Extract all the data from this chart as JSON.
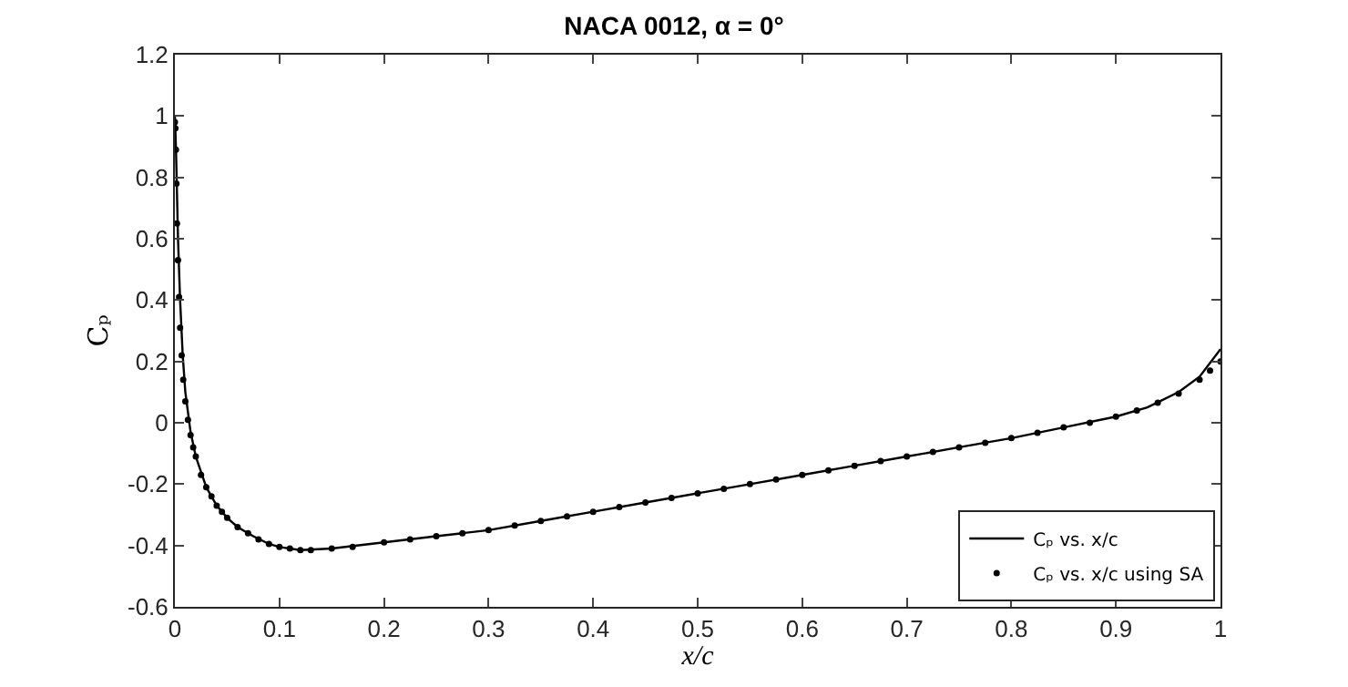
{
  "chart_data": {
    "type": "line",
    "title": "NACA 0012, α = 0°",
    "xlabel": "x/c",
    "ylabel": "Cₚ",
    "xlim": [
      0,
      1
    ],
    "xticks": [
      0,
      0.1,
      0.2,
      0.3,
      0.4,
      0.5,
      0.6,
      0.7,
      0.8,
      0.9,
      1
    ],
    "ylim": [
      -0.6,
      1.2
    ],
    "yticks": [
      -0.6,
      -0.4,
      -0.2,
      0,
      0.2,
      0.4,
      0.6,
      0.8,
      1,
      1.2
    ],
    "grid": false,
    "legend": "bottom right",
    "series": [
      {
        "name": "Cₚ vs. x/c",
        "color": "#000000",
        "marker": "none",
        "x": [
          0,
          0.001,
          0.002,
          0.003,
          0.005,
          0.0075,
          0.01,
          0.015,
          0.02,
          0.03,
          0.04,
          0.05,
          0.06,
          0.075,
          0.09,
          0.1,
          0.12,
          0.15,
          0.2,
          0.25,
          0.3,
          0.35,
          0.4,
          0.45,
          0.5,
          0.55,
          0.6,
          0.65,
          0.7,
          0.75,
          0.8,
          0.85,
          0.9,
          0.93,
          0.96,
          0.98,
          1
        ],
        "values": [
          1.0,
          0.9,
          0.75,
          0.6,
          0.4,
          0.22,
          0.1,
          -0.03,
          -0.11,
          -0.21,
          -0.27,
          -0.31,
          -0.34,
          -0.37,
          -0.395,
          -0.405,
          -0.415,
          -0.41,
          -0.39,
          -0.37,
          -0.35,
          -0.32,
          -0.29,
          -0.26,
          -0.23,
          -0.2,
          -0.17,
          -0.14,
          -0.11,
          -0.08,
          -0.05,
          -0.015,
          0.02,
          0.05,
          0.1,
          0.15,
          0.24
        ]
      },
      {
        "name": "Cₚ vs. x/c using SA",
        "color": "#000000",
        "type": "scatter",
        "marker": "circle",
        "x": [
          0,
          0.0005,
          0.001,
          0.0015,
          0.002,
          0.003,
          0.004,
          0.005,
          0.0065,
          0.008,
          0.01,
          0.0125,
          0.015,
          0.0175,
          0.02,
          0.025,
          0.03,
          0.035,
          0.04,
          0.045,
          0.05,
          0.06,
          0.07,
          0.08,
          0.09,
          0.1,
          0.11,
          0.12,
          0.13,
          0.15,
          0.17,
          0.2,
          0.225,
          0.25,
          0.275,
          0.3,
          0.325,
          0.35,
          0.375,
          0.4,
          0.425,
          0.45,
          0.475,
          0.5,
          0.525,
          0.55,
          0.575,
          0.6,
          0.625,
          0.65,
          0.675,
          0.7,
          0.725,
          0.75,
          0.775,
          0.8,
          0.825,
          0.85,
          0.875,
          0.9,
          0.92,
          0.94,
          0.96,
          0.98,
          0.99,
          1
        ],
        "values": [
          0.98,
          0.96,
          0.89,
          0.78,
          0.65,
          0.53,
          0.41,
          0.31,
          0.22,
          0.14,
          0.07,
          0.01,
          -0.04,
          -0.08,
          -0.11,
          -0.17,
          -0.21,
          -0.24,
          -0.27,
          -0.29,
          -0.31,
          -0.34,
          -0.36,
          -0.38,
          -0.395,
          -0.405,
          -0.41,
          -0.415,
          -0.415,
          -0.41,
          -0.405,
          -0.39,
          -0.38,
          -0.37,
          -0.36,
          -0.35,
          -0.335,
          -0.32,
          -0.305,
          -0.29,
          -0.275,
          -0.26,
          -0.245,
          -0.23,
          -0.215,
          -0.2,
          -0.185,
          -0.17,
          -0.155,
          -0.14,
          -0.125,
          -0.11,
          -0.095,
          -0.08,
          -0.065,
          -0.05,
          -0.033,
          -0.015,
          0.0,
          0.02,
          0.04,
          0.065,
          0.095,
          0.14,
          0.17,
          0.2
        ]
      }
    ]
  }
}
